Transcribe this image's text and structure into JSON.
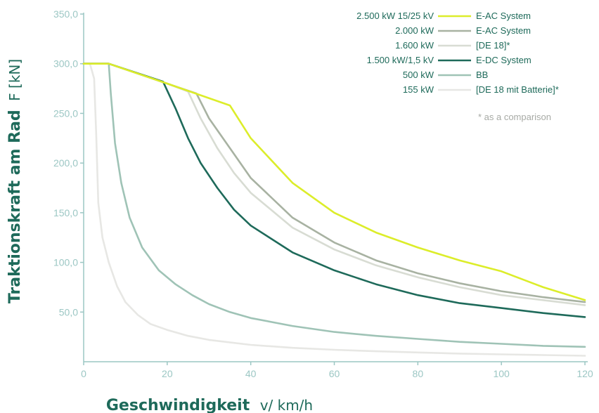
{
  "chart_data": {
    "type": "line",
    "xlabel_bold": "Geschwindigkeit",
    "xlabel_unit": "v/ km/h",
    "ylabel_bold": "Traktionskraft am Rad",
    "ylabel_unit": "F [kN]",
    "xlim": [
      0,
      120
    ],
    "ylim": [
      0,
      350
    ],
    "x_ticks": [
      "0",
      "20",
      "40",
      "60",
      "80",
      "100",
      "120"
    ],
    "x_tick_values": [
      0,
      20,
      40,
      60,
      80,
      100,
      120
    ],
    "y_ticks": [
      "50,0",
      "100,0",
      "150,0",
      "200,0",
      "250,0",
      "300,0",
      "350,0"
    ],
    "y_tick_values": [
      50,
      100,
      150,
      200,
      250,
      300,
      350
    ],
    "grid": false,
    "legend_position": "top-right",
    "note": "* as a comparison",
    "series": [
      {
        "power": "2.500 kW 15/25 kV",
        "name": "E-AC System",
        "color": "#dced2a",
        "points": [
          [
            0,
            300
          ],
          [
            6,
            300
          ],
          [
            20,
            280
          ],
          [
            35,
            258
          ],
          [
            40,
            225
          ],
          [
            50,
            180
          ],
          [
            60,
            150
          ],
          [
            70,
            130
          ],
          [
            80,
            115
          ],
          [
            90,
            102
          ],
          [
            100,
            91
          ],
          [
            110,
            75
          ],
          [
            120,
            62
          ]
        ]
      },
      {
        "power": "2.000 kW",
        "name": "E-AC System",
        "color": "#a8b2a2",
        "points": [
          [
            0,
            300
          ],
          [
            6,
            300
          ],
          [
            20,
            280
          ],
          [
            27,
            270
          ],
          [
            30,
            245
          ],
          [
            35,
            215
          ],
          [
            40,
            185
          ],
          [
            50,
            145
          ],
          [
            60,
            120
          ],
          [
            70,
            102
          ],
          [
            80,
            89
          ],
          [
            90,
            79
          ],
          [
            100,
            71
          ],
          [
            110,
            65
          ],
          [
            120,
            60
          ]
        ]
      },
      {
        "power": "1.600 kW",
        "name": "[DE 18]*",
        "color": "#d8dcd3",
        "points": [
          [
            0,
            300
          ],
          [
            6,
            300
          ],
          [
            20,
            280
          ],
          [
            25,
            272
          ],
          [
            28,
            245
          ],
          [
            32,
            215
          ],
          [
            36,
            190
          ],
          [
            40,
            170
          ],
          [
            50,
            135
          ],
          [
            60,
            113
          ],
          [
            70,
            97
          ],
          [
            80,
            85
          ],
          [
            90,
            75
          ],
          [
            100,
            67
          ],
          [
            110,
            62
          ],
          [
            120,
            57
          ]
        ]
      },
      {
        "power": "1.500 kW/1,5 kV",
        "name": "E-DC System",
        "color": "#1e6a5a",
        "points": [
          [
            0,
            300
          ],
          [
            6,
            300
          ],
          [
            19,
            282
          ],
          [
            22,
            255
          ],
          [
            25,
            225
          ],
          [
            28,
            200
          ],
          [
            32,
            175
          ],
          [
            36,
            153
          ],
          [
            40,
            137
          ],
          [
            50,
            110
          ],
          [
            60,
            92
          ],
          [
            70,
            78
          ],
          [
            80,
            67
          ],
          [
            90,
            59
          ],
          [
            100,
            54
          ],
          [
            110,
            49
          ],
          [
            120,
            45
          ]
        ]
      },
      {
        "power": "500 kW",
        "name": "BB",
        "color": "#9fc3b6",
        "points": [
          [
            0,
            300
          ],
          [
            6,
            300
          ],
          [
            6.5,
            270
          ],
          [
            7.5,
            220
          ],
          [
            9,
            180
          ],
          [
            11,
            145
          ],
          [
            14,
            115
          ],
          [
            18,
            92
          ],
          [
            22,
            78
          ],
          [
            26,
            67
          ],
          [
            30,
            58
          ],
          [
            35,
            50
          ],
          [
            40,
            44
          ],
          [
            50,
            36
          ],
          [
            60,
            30
          ],
          [
            70,
            26
          ],
          [
            80,
            23
          ],
          [
            90,
            20
          ],
          [
            100,
            18
          ],
          [
            110,
            16
          ],
          [
            120,
            15
          ]
        ]
      },
      {
        "power": "155 kW",
        "name": "[DE 18 mit Batterie]*",
        "color": "#e7e7e4",
        "points": [
          [
            0,
            300
          ],
          [
            1.5,
            300
          ],
          [
            2.5,
            285
          ],
          [
            3,
            230
          ],
          [
            3.5,
            160
          ],
          [
            4.5,
            125
          ],
          [
            6,
            100
          ],
          [
            8,
            76
          ],
          [
            10,
            60
          ],
          [
            13,
            47
          ],
          [
            16,
            38
          ],
          [
            20,
            32
          ],
          [
            25,
            26
          ],
          [
            30,
            22
          ],
          [
            40,
            17
          ],
          [
            50,
            14
          ],
          [
            60,
            12
          ],
          [
            70,
            10.5
          ],
          [
            80,
            9.3
          ],
          [
            90,
            8.2
          ],
          [
            100,
            7.4
          ],
          [
            110,
            6.7
          ],
          [
            120,
            6
          ]
        ]
      }
    ]
  }
}
